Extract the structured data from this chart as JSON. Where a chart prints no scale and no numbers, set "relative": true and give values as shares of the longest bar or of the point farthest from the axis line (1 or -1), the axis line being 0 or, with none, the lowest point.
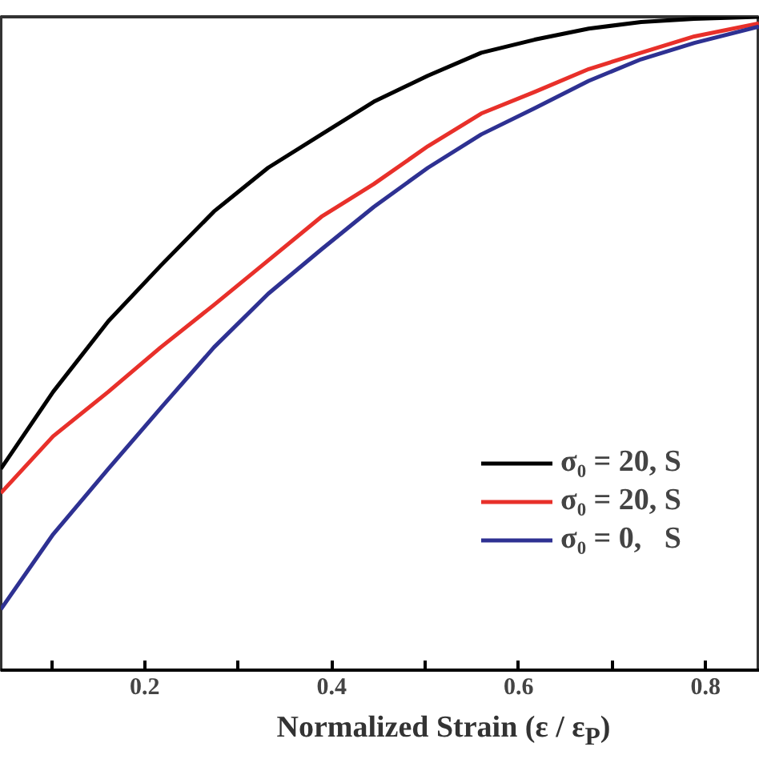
{
  "chart_data": {
    "type": "line",
    "xlabel": "Normalized Strain (ε / ε$_{P}$)",
    "relative": true,
    "x": [
      0.046,
      0.102,
      0.161,
      0.217,
      0.274,
      0.332,
      0.389,
      0.445,
      0.503,
      0.56,
      0.617,
      0.675,
      0.731,
      0.788,
      0.857
    ],
    "series": [
      {
        "name": "σ₀ = 20, S",
        "color": "#000000",
        "values": [
          0.308,
          0.426,
          0.534,
          0.619,
          0.702,
          0.769,
          0.82,
          0.87,
          0.91,
          0.945,
          0.965,
          0.982,
          0.992,
          0.997,
          1.0
        ]
      },
      {
        "name": "σ₀ = 20, S",
        "color": "#e8302a",
        "values": [
          0.271,
          0.358,
          0.426,
          0.494,
          0.559,
          0.627,
          0.694,
          0.744,
          0.802,
          0.852,
          0.885,
          0.92,
          0.945,
          0.97,
          0.99
        ]
      },
      {
        "name": "σ₀ = 0,   S",
        "color": "#2e3192",
        "values": [
          0.093,
          0.208,
          0.308,
          0.401,
          0.494,
          0.576,
          0.644,
          0.709,
          0.769,
          0.82,
          0.86,
          0.902,
          0.935,
          0.96,
          0.985
        ]
      }
    ],
    "xlim": [
      0.046,
      0.858
    ],
    "xticks": [
      {
        "value": 0.1,
        "label": null
      },
      0.2,
      {
        "value": 0.3,
        "label": null
      },
      0.4,
      {
        "value": 0.5,
        "label": null
      },
      0.6,
      {
        "value": 0.7,
        "label": null
      },
      0.8
    ],
    "legend": "right",
    "grid": false,
    "line_style": "solid",
    "marker": "none"
  }
}
